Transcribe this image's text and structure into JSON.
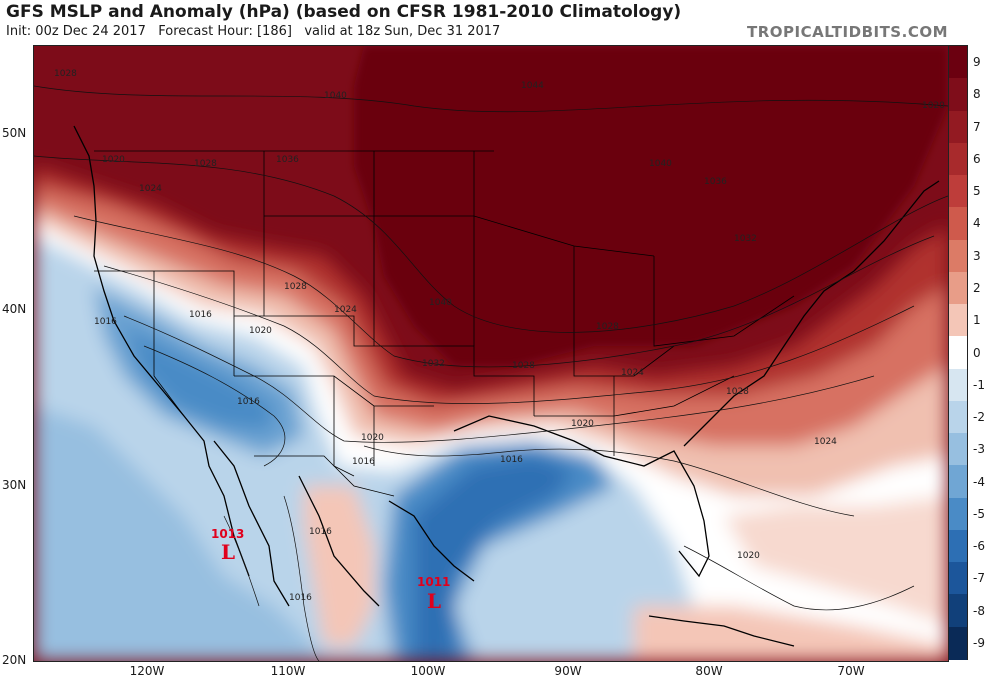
{
  "header": {
    "title": "GFS MSLP and Anomaly (hPa) (based on CFSR 1981-2010 Climatology)",
    "subtitle": "Init: 00z Dec 24 2017   Forecast Hour: [186]   valid at 18z Sun, Dec 31 2017",
    "brand": "TROPICALTIDBITS.COM"
  },
  "axes": {
    "lat_labels": [
      "50N",
      "40N",
      "30N",
      "20N"
    ],
    "lon_labels": [
      "120W",
      "110W",
      "100W",
      "90W",
      "80W",
      "70W"
    ]
  },
  "colorbar": {
    "labels": [
      "9",
      "8",
      "7",
      "6",
      "5",
      "4",
      "3",
      "2",
      "1",
      "0",
      "-1",
      "-2",
      "-3",
      "-4",
      "-5",
      "-6",
      "-7",
      "-8",
      "-9"
    ],
    "colors": [
      "#6b0010",
      "#7f0d1a",
      "#931a22",
      "#a82a2c",
      "#be3d3a",
      "#cf5a4c",
      "#dc7b66",
      "#e89d88",
      "#f4c6b7",
      "#ffffff",
      "#d7e6f1",
      "#b9d4ea",
      "#97bfe0",
      "#70a6d4",
      "#4a8bc6",
      "#2d6fb4",
      "#1c569b",
      "#11407a",
      "#0a2a57"
    ]
  },
  "isobar_labels": [
    "1028",
    "1040",
    "1044",
    "1020",
    "1028",
    "1024",
    "1036",
    "1040",
    "1036",
    "1020",
    "1032",
    "1028",
    "1016",
    "1020",
    "1016",
    "1028",
    "1024",
    "1040",
    "1032",
    "1028",
    "1024",
    "1028",
    "1020",
    "1016",
    "1016",
    "1020",
    "1016",
    "1024",
    "1016",
    "1016",
    "1020"
  ],
  "lows": [
    {
      "value": "1013",
      "symbol": "L"
    },
    {
      "value": "1011",
      "symbol": "L"
    }
  ]
}
